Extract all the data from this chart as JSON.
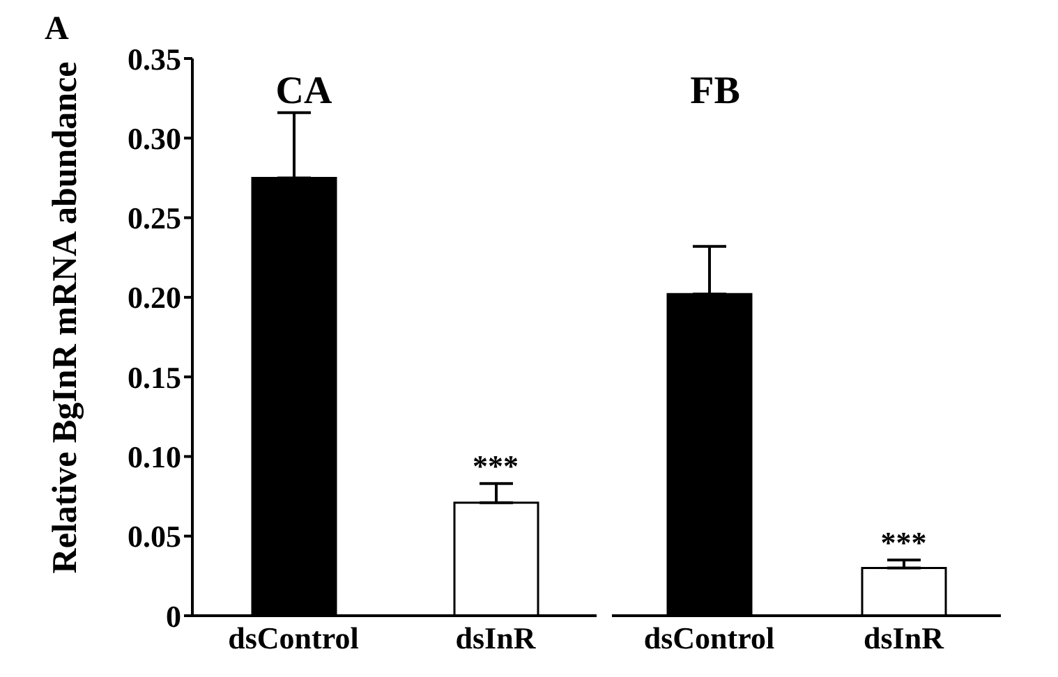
{
  "chart_data": [
    {
      "type": "bar",
      "title": "CA",
      "ylabel": "Relative BgInR mRNA abundance",
      "categories": [
        "dsControl",
        "dsInR"
      ],
      "values": [
        0.275,
        0.071
      ],
      "colors": [
        "#000000",
        "#ffffff"
      ],
      "errors": [
        [
          0.275,
          0.316
        ],
        [
          0.071,
          0.083
        ]
      ],
      "ylim": [
        0,
        0.35
      ],
      "yticks": [
        0,
        0.05,
        {
          "value": 0.1,
          "label": "0.10"
        },
        0.15,
        {
          "value": 0.2,
          "label": "0.20"
        },
        0.25,
        {
          "value": 0.3,
          "label": "0.30"
        },
        0.35
      ],
      "annotations": [
        "A",
        {
          "text": "***",
          "x": "dsInR",
          "y": 0.083
        }
      ]
    },
    {
      "type": "bar",
      "title": "FB",
      "categories": [
        "dsControl",
        "dsInR"
      ],
      "values": [
        0.202,
        0.03
      ],
      "colors": [
        "#000000",
        "#ffffff"
      ],
      "errors": [
        [
          0.202,
          0.232
        ],
        [
          0.03,
          0.035
        ]
      ],
      "ylim": [
        0,
        0.35
      ],
      "yticks": [
        0,
        0.05,
        0.1,
        0.15,
        0.2,
        0.25,
        0.3,
        0.35
      ],
      "tick_labels": "x",
      "annotations": [
        {
          "text": "***",
          "x": "dsInR",
          "y": 0.035
        }
      ]
    }
  ]
}
